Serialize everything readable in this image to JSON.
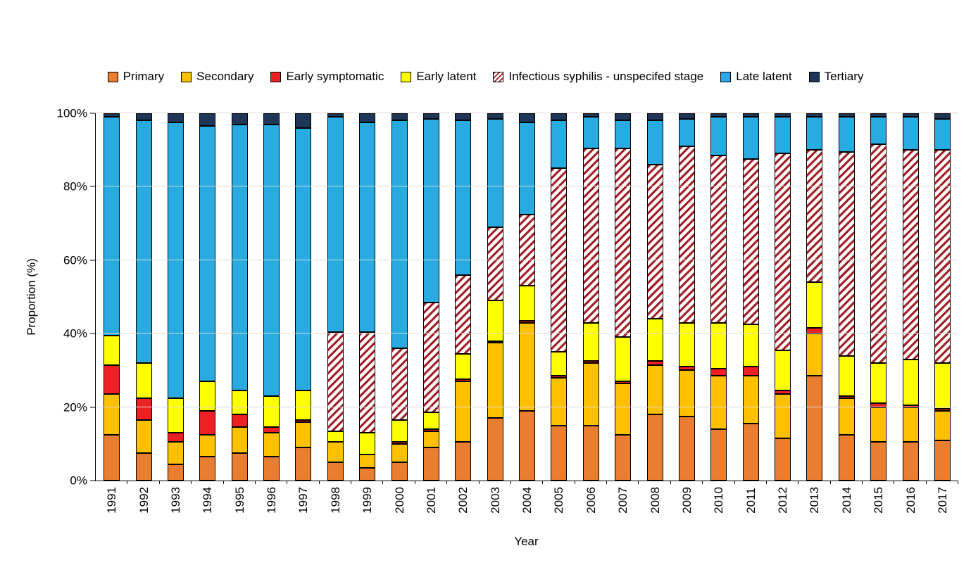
{
  "page": {
    "background": "#FFFFFF"
  },
  "chart_data": {
    "type": "bar",
    "stacked": true,
    "title": "",
    "xlabel": "Year",
    "ylabel": "Proportion (%)",
    "ylim": [
      0,
      100
    ],
    "ytick_labels": [
      "0%",
      "20%",
      "40%",
      "60%",
      "80%",
      "100%"
    ],
    "grid": true,
    "legend_position": "top",
    "categories": [
      "1991",
      "1992",
      "1993",
      "1994",
      "1995",
      "1996",
      "1997",
      "1998",
      "1999",
      "2000",
      "2001",
      "2002",
      "2003",
      "2004",
      "2005",
      "2006",
      "2007",
      "2008",
      "2009",
      "2010",
      "2011",
      "2012",
      "2013",
      "2014",
      "2015",
      "2016",
      "2017"
    ],
    "series": [
      {
        "name": "Primary",
        "color": "#E97E30",
        "pattern": "solid",
        "values": [
          12.5,
          7.5,
          4.5,
          6.5,
          7.5,
          6.5,
          9,
          5,
          3.5,
          5,
          9,
          10.5,
          17,
          19,
          15,
          15,
          12.5,
          18,
          17.5,
          14,
          15.5,
          11.5,
          28.5,
          12.5,
          10.5,
          10.5,
          11
        ]
      },
      {
        "name": "Secondary",
        "color": "#FFC000",
        "pattern": "solid",
        "values": [
          11,
          9,
          6,
          6,
          7,
          6.5,
          7,
          5.5,
          3.5,
          5,
          4.5,
          16.5,
          20.5,
          24,
          13,
          17,
          14,
          13.5,
          12.5,
          14.5,
          13,
          12,
          11.5,
          10,
          9.5,
          9.5,
          8
        ]
      },
      {
        "name": "Early symptomatic",
        "color": "#ED2024",
        "pattern": "solid",
        "values": [
          8,
          6,
          2.5,
          6.5,
          3.5,
          1.5,
          0.5,
          0,
          0,
          0.5,
          0.5,
          0.5,
          0.5,
          0.5,
          0.5,
          0.5,
          0.5,
          1,
          1,
          2,
          2.5,
          1,
          1.5,
          0.5,
          1,
          0.5,
          0.5
        ]
      },
      {
        "name": "Early latent",
        "color": "#FFFF00",
        "pattern": "solid",
        "values": [
          8,
          9.5,
          9.5,
          8,
          6.5,
          8.5,
          8,
          3,
          6,
          6,
          4.5,
          7,
          11,
          9.5,
          6.5,
          10.5,
          12,
          11.5,
          12,
          12.5,
          11.5,
          11,
          12.5,
          11,
          11,
          12.5,
          12.5
        ]
      },
      {
        "name": "Infectious syphilis - unspecifed stage",
        "color": "#A02126",
        "pattern": "hatch",
        "values": [
          0,
          0,
          0,
          0,
          0,
          0,
          0,
          27,
          27.5,
          19.5,
          30,
          21.5,
          20,
          19.5,
          50,
          47.5,
          51.5,
          42,
          48,
          45.5,
          45,
          53.5,
          36,
          55.5,
          59.5,
          57,
          58
        ]
      },
      {
        "name": "Late latent",
        "color": "#29ABE2",
        "pattern": "solid",
        "values": [
          59.5,
          66,
          75,
          69.5,
          72.5,
          74,
          71.5,
          58.5,
          57,
          62,
          50,
          42,
          29.5,
          25,
          13,
          8.5,
          7.5,
          12,
          7.5,
          10.5,
          11.5,
          10,
          9,
          9.5,
          7.5,
          9,
          8.5
        ]
      },
      {
        "name": "Tertiary",
        "color": "#1F3656",
        "pattern": "solid",
        "values": [
          1,
          2,
          2.5,
          3.5,
          3,
          3,
          4,
          1,
          2.5,
          2,
          1.5,
          2,
          1.5,
          2.5,
          2,
          1,
          2,
          2,
          1.5,
          1,
          1,
          1,
          1,
          1,
          1,
          1,
          1.5
        ]
      }
    ]
  }
}
